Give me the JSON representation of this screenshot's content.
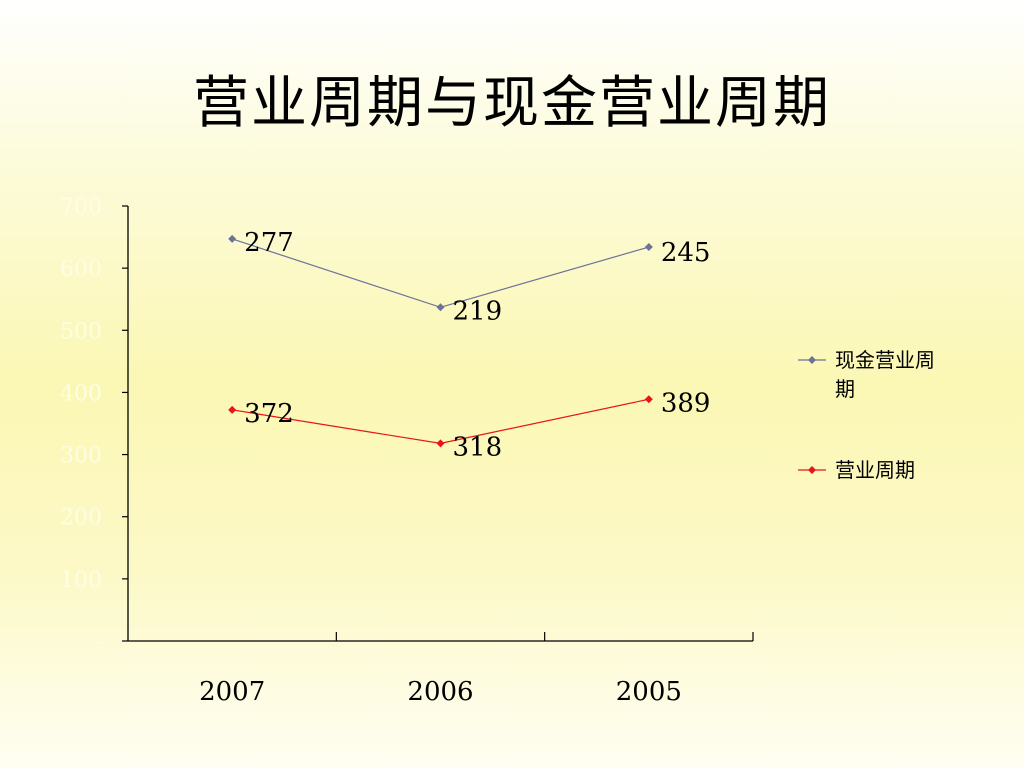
{
  "slide": {
    "title": "营业周期与现金营业周期"
  },
  "chart_data": {
    "type": "line",
    "categories": [
      "2007",
      "2006",
      "2005"
    ],
    "series": [
      {
        "name": "现金营业周期",
        "legend_lines": [
          "现金营业周",
          "期"
        ],
        "plot_values": [
          647,
          537,
          634
        ],
        "labels": [
          "277",
          "219",
          "245"
        ],
        "color": "#6b7399"
      },
      {
        "name": "营业周期",
        "legend_lines": [
          "营业周期"
        ],
        "plot_values": [
          372,
          318,
          389
        ],
        "labels": [
          "372",
          "318",
          "389"
        ],
        "color": "#e8141b"
      }
    ],
    "yticks": [
      "700",
      "600",
      "500",
      "400",
      "300",
      "200",
      "100",
      "-"
    ],
    "ylim": [
      0,
      700
    ],
    "grid": false,
    "legend_position": "right"
  }
}
